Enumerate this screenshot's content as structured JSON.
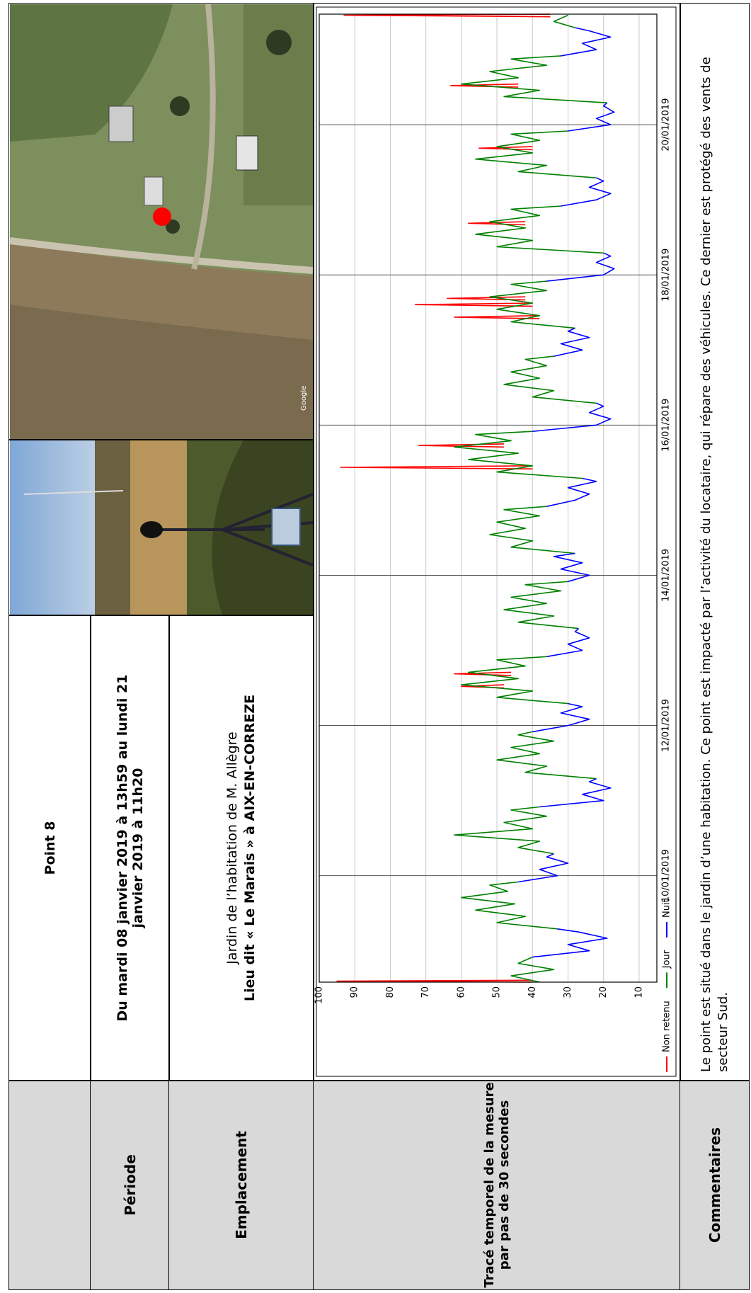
{
  "header": {
    "title": "Point 8"
  },
  "period": {
    "label": "Période",
    "lines": [
      "Du mardi 08 janvier 2019 à 13h59 au lundi 21",
      "janvier 2019 à 11h20"
    ]
  },
  "location": {
    "label": "Emplacement",
    "line1": "Jardin de l’habitation de M. Allègre",
    "line2": "Lieu dit « Le Marais » à AIX-EN-CORREZE"
  },
  "trace": {
    "label_lines": [
      "Tracé temporel de la mesure",
      "par pas de 30 secondes"
    ]
  },
  "map_credit": "Google",
  "comments": {
    "label": "Commentaires",
    "text": "Le point est situé dans le jardin d’une habitation. Ce point est impacté par l’activité du locataire, qui répare des véhicules. Ce dernier est protégé des vents de secteur Sud."
  },
  "chart_data": {
    "type": "line",
    "xlim": [
      13.98,
      323.33
    ],
    "xticks": [
      {
        "value": 48,
        "label": "10/01/2019"
      },
      {
        "value": 96,
        "label": "12/01/2019"
      },
      {
        "value": 144,
        "label": "14/01/2019"
      },
      {
        "value": 192,
        "label": "16/01/2019"
      },
      {
        "value": 240,
        "label": "18/01/2019"
      },
      {
        "value": 288,
        "label": "20/01/2019"
      }
    ],
    "ylim": [
      5,
      100
    ],
    "yticks": [
      10,
      20,
      30,
      40,
      50,
      60,
      70,
      80,
      90,
      100
    ],
    "grid": true,
    "legend": "bottom-left",
    "series": [
      {
        "name": "Non retenu",
        "color": "#ff0000",
        "x": [
          14,
          14.3,
          14.6,
          null,
          108,
          108.5,
          109,
          null,
          112,
          112.5,
          113,
          null,
          178,
          178.5,
          179,
          null,
          185,
          185.5,
          186,
          null,
          226,
          226.5,
          227,
          null,
          230,
          230.5,
          231,
          null,
          232,
          232.5,
          233,
          null,
          256,
          256.5,
          257,
          null,
          280,
          280.5,
          281,
          null,
          300,
          300.5,
          301,
          null,
          322.5,
          323,
          323.3
        ],
        "values": [
          40,
          95,
          40,
          null,
          48,
          60,
          48,
          null,
          46,
          62,
          46,
          null,
          40,
          94,
          40,
          null,
          48,
          72,
          48,
          null,
          38,
          62,
          38,
          null,
          40,
          73,
          40,
          null,
          42,
          64,
          42,
          null,
          42,
          58,
          42,
          null,
          40,
          55,
          40,
          null,
          44,
          63,
          44,
          null,
          35,
          93,
          35
        ]
      },
      {
        "name": "Jour",
        "color": "#008000",
        "x": [
          14,
          16,
          18,
          20,
          22,
          null,
          31,
          33,
          35,
          37,
          39,
          41,
          43,
          45,
          46,
          null,
          55,
          57,
          59,
          61,
          63,
          65,
          67,
          69,
          70,
          null,
          79,
          81,
          83,
          85,
          87,
          89,
          91,
          93,
          94,
          null,
          103,
          105,
          107,
          109,
          111,
          113,
          115,
          117,
          118,
          null,
          127,
          129,
          131,
          133,
          135,
          137,
          139,
          141,
          142,
          null,
          151,
          153,
          155,
          157,
          159,
          161,
          163,
          165,
          166,
          null,
          175,
          177,
          179,
          181,
          183,
          185,
          187,
          189,
          190,
          null,
          199,
          201,
          203,
          205,
          207,
          209,
          211,
          213,
          214,
          null,
          223,
          225,
          227,
          229,
          231,
          233,
          235,
          237,
          238,
          null,
          247,
          249,
          251,
          253,
          255,
          257,
          259,
          261,
          262,
          null,
          271,
          273,
          275,
          277,
          279,
          281,
          283,
          285,
          286,
          null,
          295,
          297,
          299,
          301,
          303,
          305,
          307,
          309,
          310,
          null,
          319,
          321,
          323
        ],
        "values": [
          38,
          46,
          34,
          44,
          40,
          null,
          33,
          50,
          42,
          56,
          45,
          60,
          47,
          52,
          44,
          null,
          34,
          44,
          38,
          62,
          40,
          48,
          36,
          46,
          38,
          null,
          22,
          42,
          36,
          50,
          38,
          46,
          34,
          44,
          40,
          null,
          30,
          50,
          40,
          60,
          44,
          58,
          42,
          50,
          36,
          null,
          27,
          44,
          34,
          48,
          36,
          46,
          32,
          42,
          30,
          null,
          28,
          46,
          40,
          52,
          42,
          50,
          38,
          48,
          36,
          null,
          26,
          50,
          40,
          58,
          44,
          62,
          46,
          56,
          40,
          null,
          22,
          40,
          34,
          48,
          38,
          46,
          36,
          42,
          34,
          null,
          28,
          46,
          38,
          50,
          40,
          52,
          36,
          46,
          36,
          null,
          20,
          50,
          40,
          56,
          42,
          52,
          38,
          46,
          32,
          null,
          22,
          44,
          36,
          56,
          40,
          50,
          38,
          46,
          30,
          null,
          19,
          48,
          38,
          60,
          44,
          52,
          36,
          46,
          32,
          null,
          28,
          34,
          30
        ]
      },
      {
        "name": "Nuit",
        "color": "#0000ff",
        "x": [
          22,
          24,
          26,
          28,
          30,
          31,
          null,
          46,
          48,
          50,
          52,
          54,
          55,
          null,
          70,
          72,
          74,
          76,
          78,
          79,
          null,
          94,
          96,
          98,
          100,
          102,
          103,
          null,
          118,
          120,
          122,
          124,
          126,
          127,
          null,
          142,
          144,
          146,
          148,
          150,
          151,
          null,
          166,
          168,
          170,
          172,
          174,
          175,
          null,
          190,
          192,
          194,
          196,
          198,
          199,
          null,
          214,
          216,
          218,
          220,
          222,
          223,
          null,
          238,
          240,
          242,
          244,
          246,
          247,
          null,
          262,
          264,
          266,
          268,
          270,
          271,
          null,
          286,
          288,
          290,
          292,
          294,
          295,
          null,
          310,
          312,
          314,
          316,
          318,
          319
        ],
        "values": [
          40,
          24,
          30,
          19,
          27,
          33,
          null,
          44,
          33,
          38,
          30,
          36,
          34,
          null,
          38,
          20,
          26,
          18,
          24,
          22,
          null,
          40,
          30,
          24,
          32,
          26,
          30,
          null,
          36,
          26,
          30,
          24,
          28,
          27,
          null,
          30,
          24,
          32,
          26,
          34,
          28,
          null,
          36,
          28,
          24,
          30,
          22,
          26,
          null,
          40,
          22,
          18,
          24,
          20,
          22,
          null,
          34,
          26,
          32,
          24,
          30,
          28,
          null,
          36,
          20,
          17,
          22,
          18,
          20,
          null,
          32,
          22,
          18,
          24,
          20,
          22,
          null,
          30,
          18,
          22,
          17,
          20,
          19,
          null,
          32,
          22,
          26,
          18,
          24,
          28
        ]
      }
    ]
  }
}
